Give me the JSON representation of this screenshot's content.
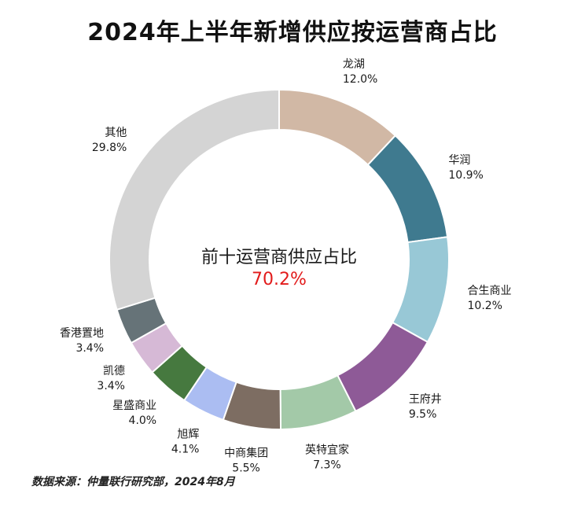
{
  "chart_data": {
    "type": "pie",
    "title": "2024年上半年新增供应按运营商占比",
    "center_label": "前十运营商供应占比",
    "center_value": "70.2%",
    "slices": [
      {
        "name": "龙湖",
        "value": 12.0,
        "label": "12.0%",
        "color": "#d1b8a5"
      },
      {
        "name": "华润",
        "value": 10.9,
        "label": "10.9%",
        "color": "#3f7a8f"
      },
      {
        "name": "合生商业",
        "value": 10.2,
        "label": "10.2%",
        "color": "#98c8d6"
      },
      {
        "name": "王府井",
        "value": 9.5,
        "label": "9.5%",
        "color": "#8e5a97"
      },
      {
        "name": "英特宜家",
        "value": 7.3,
        "label": "7.3%",
        "color": "#a3c9a8"
      },
      {
        "name": "中商集团",
        "value": 5.5,
        "label": "5.5%",
        "color": "#7d6d62"
      },
      {
        "name": "旭辉",
        "value": 4.1,
        "label": "4.1%",
        "color": "#abbdf2"
      },
      {
        "name": "星盛商业",
        "value": 4.0,
        "label": "4.0%",
        "color": "#46793f"
      },
      {
        "name": "凯德",
        "value": 3.4,
        "label": "3.4%",
        "color": "#d6b9d6"
      },
      {
        "name": "香港置地",
        "value": 3.4,
        "label": "3.4%",
        "color": "#667378"
      },
      {
        "name": "其他",
        "value": 29.8,
        "label": "29.8%",
        "color": "#d4d4d4"
      }
    ]
  },
  "source": "数据来源：仲量联行研究部，2024年8月"
}
